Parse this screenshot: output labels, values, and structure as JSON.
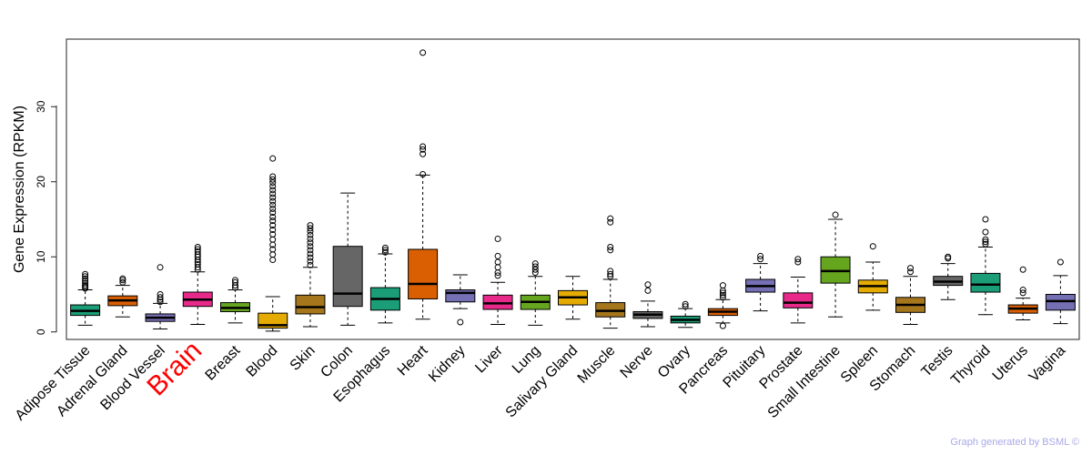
{
  "chart_data": {
    "type": "boxplot",
    "title": "",
    "xlabel": "",
    "ylabel": "Gene Expression (RPKM)",
    "ylim": [
      -1,
      39
    ],
    "yticks": [
      0,
      10,
      20,
      30
    ],
    "grid": false,
    "highlight_color": "#ff0000",
    "highlighted": "Brain",
    "series": [
      {
        "name": "Adipose Tissue",
        "color": "#1b9e77",
        "whisker_low": 0.9,
        "q1": 2.2,
        "median": 2.8,
        "q3": 3.6,
        "whisker_high": 5.6,
        "outliers": [
          5.8,
          6.0,
          6.2,
          6.5,
          6.8,
          7.1,
          7.4,
          7.7
        ]
      },
      {
        "name": "Adrenal Gland",
        "color": "#d95f02",
        "whisker_low": 2.0,
        "q1": 3.5,
        "median": 4.2,
        "q3": 4.8,
        "whisker_high": 6.2,
        "outliers": [
          6.6,
          6.9,
          7.1
        ]
      },
      {
        "name": "Blood Vessel",
        "color": "#7570b3",
        "whisker_low": 0.4,
        "q1": 1.4,
        "median": 1.9,
        "q3": 2.4,
        "whisker_high": 3.8,
        "outliers": [
          4.0,
          4.3,
          4.6,
          5.0,
          8.6
        ]
      },
      {
        "name": "Brain",
        "color": "#e7298a",
        "whisker_low": 1.0,
        "q1": 3.4,
        "median": 4.3,
        "q3": 5.3,
        "whisker_high": 8.0,
        "outliers": [
          8.3,
          8.6,
          9.0,
          9.3,
          9.6,
          10.0,
          10.3,
          10.7,
          11.0,
          11.3
        ]
      },
      {
        "name": "Breast",
        "color": "#66a61e",
        "whisker_low": 1.2,
        "q1": 2.7,
        "median": 3.2,
        "q3": 3.9,
        "whisker_high": 5.6,
        "outliers": [
          5.9,
          6.2,
          6.6,
          6.9
        ]
      },
      {
        "name": "Blood",
        "color": "#e6ab02",
        "whisker_low": 0.1,
        "q1": 0.5,
        "median": 0.9,
        "q3": 2.5,
        "whisker_high": 4.7,
        "outliers": [
          9.6,
          10.3,
          11.0,
          11.6,
          12.3,
          13.0,
          13.6,
          14.2,
          14.8,
          15.3,
          15.9,
          16.4,
          16.9,
          17.4,
          17.9,
          18.4,
          18.9,
          19.4,
          19.9,
          20.3,
          20.7,
          23.1
        ]
      },
      {
        "name": "Skin",
        "color": "#a6761d",
        "whisker_low": 0.7,
        "q1": 2.4,
        "median": 3.3,
        "q3": 4.9,
        "whisker_high": 8.6,
        "outliers": [
          8.9,
          9.4,
          9.9,
          10.4,
          10.9,
          11.4,
          11.9,
          12.4,
          12.9,
          13.4,
          13.8,
          14.2
        ]
      },
      {
        "name": "Colon",
        "color": "#666666",
        "whisker_low": 0.9,
        "q1": 3.4,
        "median": 5.1,
        "q3": 11.4,
        "whisker_high": 18.5,
        "outliers": []
      },
      {
        "name": "Esophagus",
        "color": "#1b9e77",
        "whisker_low": 1.2,
        "q1": 2.9,
        "median": 4.4,
        "q3": 5.9,
        "whisker_high": 10.4,
        "outliers": [
          10.6,
          10.9,
          11.2
        ]
      },
      {
        "name": "Heart",
        "color": "#d95f02",
        "whisker_low": 1.7,
        "q1": 4.4,
        "median": 6.4,
        "q3": 11.0,
        "whisker_high": 20.9,
        "outliers": [
          21.0,
          23.7,
          24.3,
          24.7,
          37.2
        ]
      },
      {
        "name": "Kidney",
        "color": "#7570b3",
        "whisker_low": 3.1,
        "q1": 4.0,
        "median": 5.2,
        "q3": 5.6,
        "whisker_high": 7.6,
        "outliers": [
          1.3
        ]
      },
      {
        "name": "Liver",
        "color": "#e7298a",
        "whisker_low": 1.0,
        "q1": 3.0,
        "median": 3.8,
        "q3": 4.9,
        "whisker_high": 6.6,
        "outliers": [
          7.5,
          7.9,
          8.6,
          9.3,
          10.1,
          12.4
        ]
      },
      {
        "name": "Lung",
        "color": "#66a61e",
        "whisker_low": 0.9,
        "q1": 3.0,
        "median": 4.0,
        "q3": 4.9,
        "whisker_high": 7.4,
        "outliers": [
          7.9,
          8.3,
          8.7,
          9.1
        ]
      },
      {
        "name": "Salivary Gland",
        "color": "#e6ab02",
        "whisker_low": 1.7,
        "q1": 3.6,
        "median": 4.6,
        "q3": 5.5,
        "whisker_high": 7.4,
        "outliers": []
      },
      {
        "name": "Muscle",
        "color": "#a6761d",
        "whisker_low": 0.5,
        "q1": 2.0,
        "median": 2.8,
        "q3": 3.9,
        "whisker_high": 7.0,
        "outliers": [
          7.4,
          7.7,
          8.1,
          10.9,
          11.3,
          14.6,
          15.1
        ]
      },
      {
        "name": "Nerve",
        "color": "#666666",
        "whisker_low": 0.7,
        "q1": 1.8,
        "median": 2.3,
        "q3": 2.7,
        "whisker_high": 4.1,
        "outliers": [
          5.5,
          6.3
        ]
      },
      {
        "name": "Ovary",
        "color": "#1b9e77",
        "whisker_low": 0.6,
        "q1": 1.2,
        "median": 1.6,
        "q3": 2.1,
        "whisker_high": 3.1,
        "outliers": [
          3.4,
          3.7
        ]
      },
      {
        "name": "Pancreas",
        "color": "#d95f02",
        "whisker_low": 1.2,
        "q1": 2.2,
        "median": 2.7,
        "q3": 3.1,
        "whisker_high": 4.3,
        "outliers": [
          0.8,
          4.6,
          4.9,
          5.2,
          5.5,
          6.2
        ]
      },
      {
        "name": "Pituitary",
        "color": "#7570b3",
        "whisker_low": 2.8,
        "q1": 5.3,
        "median": 6.1,
        "q3": 7.0,
        "whisker_high": 9.1,
        "outliers": [
          9.7,
          10.1
        ]
      },
      {
        "name": "Prostate",
        "color": "#e7298a",
        "whisker_low": 1.2,
        "q1": 3.2,
        "median": 3.9,
        "q3": 5.2,
        "whisker_high": 7.3,
        "outliers": [
          9.3,
          9.7
        ]
      },
      {
        "name": "Small Intestine",
        "color": "#66a61e",
        "whisker_low": 2.0,
        "q1": 6.5,
        "median": 8.1,
        "q3": 10.0,
        "whisker_high": 15.0,
        "outliers": [
          15.6
        ]
      },
      {
        "name": "Spleen",
        "color": "#e6ab02",
        "whisker_low": 2.9,
        "q1": 5.2,
        "median": 6.1,
        "q3": 6.9,
        "whisker_high": 9.3,
        "outliers": [
          11.4
        ]
      },
      {
        "name": "Stomach",
        "color": "#a6761d",
        "whisker_low": 1.0,
        "q1": 2.6,
        "median": 3.6,
        "q3": 4.6,
        "whisker_high": 7.4,
        "outliers": [
          8.0,
          8.5
        ]
      },
      {
        "name": "Testis",
        "color": "#666666",
        "whisker_low": 4.3,
        "q1": 6.2,
        "median": 6.7,
        "q3": 7.4,
        "whisker_high": 9.1,
        "outliers": [
          9.8,
          10.0
        ]
      },
      {
        "name": "Thyroid",
        "color": "#1b9e77",
        "whisker_low": 2.3,
        "q1": 5.3,
        "median": 6.3,
        "q3": 7.8,
        "whisker_high": 11.3,
        "outliers": [
          11.7,
          12.0,
          12.3,
          13.3,
          15.0
        ]
      },
      {
        "name": "Uterus",
        "color": "#d95f02",
        "whisker_low": 1.6,
        "q1": 2.5,
        "median": 3.1,
        "q3": 3.6,
        "whisker_high": 4.5,
        "outliers": [
          5.2,
          5.6,
          8.3
        ]
      },
      {
        "name": "Vagina",
        "color": "#7570b3",
        "whisker_low": 1.1,
        "q1": 2.9,
        "median": 4.1,
        "q3": 5.0,
        "whisker_high": 7.5,
        "outliers": [
          9.3
        ]
      }
    ]
  },
  "credit": "Graph generated by BSML ©"
}
